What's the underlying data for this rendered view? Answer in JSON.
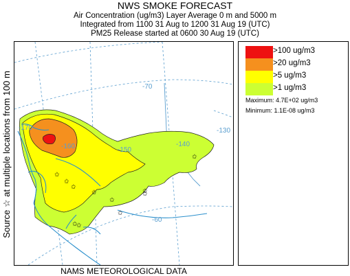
{
  "header": {
    "title": "NWS SMOKE FORECAST",
    "line1": "Air Concentration (ug/m3) Layer Average    0 m and  5000 m",
    "line2": "Integrated from 1100 31 Aug to 1200 31 Aug 19 (UTC)",
    "line3": "PM25 Release started at 0600 30 Aug 19 (UTC)"
  },
  "side_label": "Source ☆   at multiple locations     from   100 m",
  "bottom_label": "NAMS METEOROLOGICAL DATA",
  "map": {
    "grid_labels": [
      "-170",
      "-160",
      "-150",
      "-140",
      "-130",
      "-70",
      "-60"
    ],
    "colors": {
      "water_line": "#2a8fcc",
      "grid_line": "#5a9ecf",
      "over_100": "#ee1111",
      "over_20": "#f5901e",
      "over_5": "#ffff00",
      "over_1": "#ccff33"
    }
  },
  "legend": {
    "items": [
      {
        "label": ">100 ug/m3",
        "color": "#ee1111"
      },
      {
        "label": ">20 ug/m3",
        "color": "#f5901e"
      },
      {
        "label": ">5 ug/m3",
        "color": "#ffff00"
      },
      {
        "label": ">1 ug/m3",
        "color": "#ccff33"
      }
    ],
    "maximum": "Maximum: 4.7E+02 ug/m3",
    "minimum": "Minimum: 1.1E-08 ug/m3"
  }
}
